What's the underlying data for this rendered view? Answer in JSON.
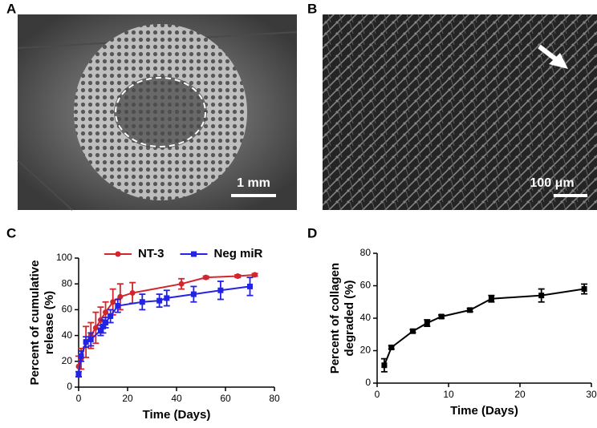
{
  "images": [
    {
      "panel_label": "A",
      "scale_bar": "1 mm"
    },
    {
      "panel_label": "B",
      "scale_bar": "100 μm"
    }
  ],
  "chart_data": [
    {
      "type": "line",
      "panel_label": "C",
      "xlabel": "Time (Days)",
      "ylabel": [
        "Percent of cumulative",
        "release (%)"
      ],
      "xlim": [
        0,
        80
      ],
      "xticks": [
        0,
        20,
        40,
        60,
        80
      ],
      "ylim": [
        0,
        100
      ],
      "yticks": [
        0,
        20,
        40,
        60,
        80,
        100
      ],
      "legend": "top",
      "series": [
        {
          "name": "NT-3",
          "color": "#d0262c",
          "marker": "circle",
          "x": [
            0,
            1,
            3,
            5,
            7,
            9,
            11,
            14,
            17,
            22,
            42,
            52,
            65,
            72
          ],
          "values": [
            16,
            22,
            35,
            40,
            46,
            52,
            58,
            66,
            70,
            73,
            80,
            85,
            86,
            87
          ],
          "errors": [
            8,
            8,
            12,
            10,
            12,
            10,
            8,
            10,
            10,
            8,
            4,
            1,
            1,
            1
          ]
        },
        {
          "name": "Neg miR",
          "color": "#2323e6",
          "marker": "square",
          "x": [
            0,
            1,
            3,
            5,
            9,
            10,
            11,
            13,
            16,
            26,
            33,
            36,
            47,
            58,
            70
          ],
          "values": [
            10,
            24,
            35,
            37,
            44,
            47,
            50,
            55,
            63,
            66,
            67,
            69,
            72,
            75,
            78
          ],
          "errors": [
            2,
            4,
            4,
            5,
            4,
            5,
            4,
            5,
            5,
            6,
            5,
            6,
            6,
            7,
            7
          ]
        }
      ]
    },
    {
      "type": "line",
      "panel_label": "D",
      "xlabel": "Time (Days)",
      "ylabel": [
        "Percent of collagen",
        "degraded (%)"
      ],
      "xlim": [
        0,
        30
      ],
      "xticks": [
        0,
        10,
        20,
        30
      ],
      "ylim": [
        0,
        80
      ],
      "yticks": [
        0,
        20,
        40,
        60,
        80
      ],
      "series": [
        {
          "color": "#000000",
          "marker": "square",
          "x": [
            1,
            2,
            5,
            7,
            9,
            13,
            16,
            23,
            29
          ],
          "values": [
            11,
            22,
            32,
            37,
            41,
            45,
            52,
            54,
            58
          ],
          "errors": [
            4,
            1,
            1,
            2,
            1,
            1,
            2,
            4,
            3
          ]
        }
      ]
    }
  ]
}
